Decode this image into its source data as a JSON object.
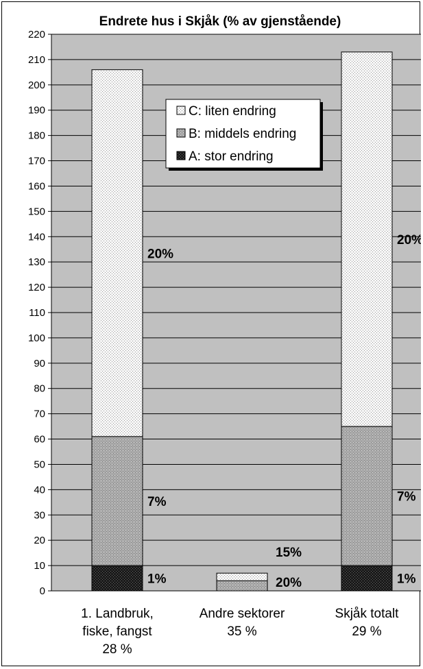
{
  "chart_data": {
    "type": "bar",
    "stacked": true,
    "title": "Endrete hus i Skjåk (% av gjenstående)",
    "xlabel": "",
    "ylabel": "",
    "ylim": [
      0,
      220
    ],
    "ytick_step": 10,
    "grid": true,
    "legend_position": "top-center",
    "categories": [
      [
        "1. Landbruk,",
        "fiske, fangst",
        "28 %"
      ],
      [
        "Andre sektorer",
        "35 %"
      ],
      [
        "Skjåk totalt",
        "29 %"
      ]
    ],
    "series": [
      {
        "name": "A: stor endring",
        "values": [
          10,
          0,
          10
        ],
        "color": "#2a2a2a",
        "pattern": "dark",
        "labels": [
          "1%",
          "",
          "1%"
        ]
      },
      {
        "name": "B: middels endring",
        "values": [
          51,
          4,
          55
        ],
        "color": "#a8a8a8",
        "pattern": "medium",
        "labels": [
          "7%",
          "20%",
          "7%"
        ]
      },
      {
        "name": "C: liten endring",
        "values": [
          145,
          3,
          148
        ],
        "color": "#ececec",
        "pattern": "light",
        "labels": [
          "20%",
          "15%",
          "20%"
        ]
      }
    ],
    "colors": {
      "plot_background": "#c0c0c0",
      "grid": "#000000"
    }
  }
}
